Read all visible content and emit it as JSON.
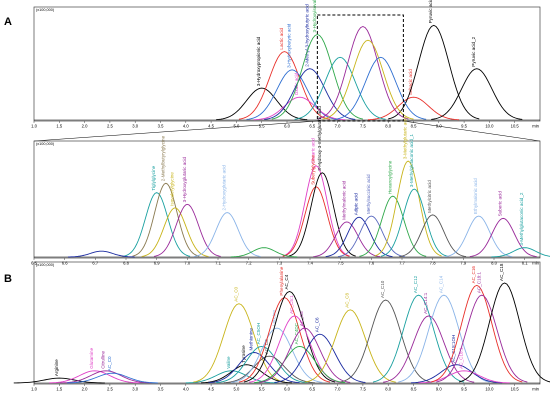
{
  "chart_data": [
    {
      "type": "line",
      "panel_label": "A",
      "ymax_label": "(x100,000)",
      "x_unit": "min",
      "xlim": [
        1.0,
        11.0
      ],
      "xticks": [
        1.0,
        1.5,
        2.0,
        2.5,
        3.0,
        3.5,
        4.0,
        4.5,
        5.0,
        5.5,
        6.0,
        6.5,
        7.0,
        7.5,
        8.0,
        8.5,
        9.0,
        9.5,
        10.0,
        10.5
      ],
      "zoom_box_x": [
        6.6,
        8.3
      ],
      "zoom_box_y": [
        0.0,
        1.0
      ],
      "peaks": [
        {
          "name": "3-Hydroxypropionic acid",
          "rt": 5.5,
          "h": 0.28,
          "color": "#000000",
          "labelled": true
        },
        {
          "name": "Lactic acid",
          "rt": 5.95,
          "h": 0.6,
          "color": "#e8302a",
          "labelled": true
        },
        {
          "name": "3-Hydroxybutyric acid",
          "rt": 6.1,
          "h": 0.44,
          "color": "#2f6fd1",
          "labelled": true
        },
        {
          "name": "Oxalic acid",
          "rt": 6.25,
          "h": 0.2,
          "color": "#e040c8",
          "labelled": true
        },
        {
          "name": "2-Methyl-3-hydroxybutyric acid",
          "rt": 6.45,
          "h": 0.45,
          "color": "#1a2aa0",
          "labelled": true
        },
        {
          "name": "3-Hydroxyisovaleric acid",
          "rt": 6.6,
          "h": 0.75,
          "color": "#2fa84a",
          "labelled": true
        },
        {
          "name": "Sebacic acid",
          "rt": 8.5,
          "h": 0.2,
          "color": "#e8302a",
          "labelled": true
        },
        {
          "name": "Pyruvic acid_1",
          "rt": 8.9,
          "h": 0.83,
          "color": "#000000",
          "labelled": true
        },
        {
          "name": "Pyruvic acid_2",
          "rt": 9.75,
          "h": 0.45,
          "color": "#000000",
          "labelled": true
        },
        {
          "name": "",
          "rt": 7.05,
          "h": 0.55,
          "color": "#1aa0a0",
          "labelled": false
        },
        {
          "name": "",
          "rt": 7.5,
          "h": 0.82,
          "color": "#9a2a9a",
          "labelled": false
        },
        {
          "name": "",
          "rt": 7.6,
          "h": 0.7,
          "color": "#c8b41a",
          "labelled": false
        },
        {
          "name": "",
          "rt": 7.85,
          "h": 0.55,
          "color": "#2f6fd1",
          "labelled": false
        }
      ]
    },
    {
      "type": "line",
      "panel_label": "",
      "ymax_label": "(x100,000)",
      "x_unit": "min",
      "xlim": [
        6.5,
        8.15
      ],
      "xticks": [
        6.5,
        6.6,
        6.7,
        6.8,
        6.9,
        7.0,
        7.1,
        7.2,
        7.3,
        7.4,
        7.5,
        7.6,
        7.7,
        7.8,
        7.9,
        8.0,
        8.1
      ],
      "peaks": [
        {
          "name": "Tiglylglycine",
          "rt": 6.9,
          "h": 0.55,
          "color": "#1aa0a0"
        },
        {
          "name": "2-Methylbutyrylglycine",
          "rt": 6.93,
          "h": 0.63,
          "color": "#8a7a50"
        },
        {
          "name": "Isovalerylglycine",
          "rt": 6.96,
          "h": 0.42,
          "color": "#c8b41a"
        },
        {
          "name": "3-Hydroxyglutaric acid",
          "rt": 7.0,
          "h": 0.45,
          "color": "#9a2a9a"
        },
        {
          "name": "2-Hydroxyglutaric acid",
          "rt": 7.13,
          "h": 0.38,
          "color": "#8ab4e8"
        },
        {
          "name": "Glutaric acid",
          "rt": 7.42,
          "h": 0.78,
          "color": "#e040c8"
        },
        {
          "name": "Suberylglycine",
          "rt": 7.42,
          "h": 0.6,
          "color": "#e8302a"
        },
        {
          "name": "3-Hydroxy-3-methylglutaric acid",
          "rt": 7.44,
          "h": 0.72,
          "color": "#000000"
        },
        {
          "name": "Methylmalonic acid",
          "rt": 7.52,
          "h": 0.3,
          "color": "#9a2a9a"
        },
        {
          "name": "Adipic acid",
          "rt": 7.56,
          "h": 0.34,
          "color": "#1a2aa0"
        },
        {
          "name": "Methylsuccinic acid",
          "rt": 7.6,
          "h": 0.35,
          "color": "#5a6abf"
        },
        {
          "name": "Hexanoylglycine",
          "rt": 7.67,
          "h": 0.52,
          "color": "#2fa84a"
        },
        {
          "name": "3-Methylglutaric acid",
          "rt": 7.72,
          "h": 0.82,
          "color": "#c8b41a"
        },
        {
          "name": "3-Methylglutaconic acid_1",
          "rt": 7.74,
          "h": 0.58,
          "color": "#1aa0a0"
        },
        {
          "name": "Methylcitric acid",
          "rt": 7.8,
          "h": 0.36,
          "color": "#555555"
        },
        {
          "name": "Ethylmalonic acid",
          "rt": 7.95,
          "h": 0.35,
          "color": "#8ab4e8"
        },
        {
          "name": "Suberic acid",
          "rt": 8.03,
          "h": 0.33,
          "color": "#9a2a9a"
        },
        {
          "name": "3-Methylglutaconic acid_2",
          "rt": 8.1,
          "h": 0.08,
          "color": "#1aa0a0"
        },
        {
          "name": "",
          "rt": 6.72,
          "h": 0.05,
          "color": "#1a2aa0"
        },
        {
          "name": "",
          "rt": 7.25,
          "h": 0.08,
          "color": "#2fa84a"
        }
      ]
    },
    {
      "type": "line",
      "panel_label": "B",
      "ymax_label": "(x100,000)",
      "x_unit": "min",
      "xlim": [
        1.0,
        11.0
      ],
      "xticks": [
        1.0,
        1.5,
        2.0,
        2.5,
        3.0,
        3.5,
        4.0,
        4.5,
        5.0,
        5.5,
        6.0,
        6.5,
        7.0,
        7.5,
        8.0,
        8.5,
        9.0,
        9.5,
        10.0,
        10.5
      ],
      "peaks": [
        {
          "name": "Arginine",
          "rt": 1.5,
          "h": 0.04,
          "color": "#000000"
        },
        {
          "name": "Glutamine",
          "rt": 2.2,
          "h": 0.1,
          "color": "#e040c8"
        },
        {
          "name": "Citrulline",
          "rt": 2.42,
          "h": 0.1,
          "color": "#9a2a9a"
        },
        {
          "name": "AC_C0",
          "rt": 2.55,
          "h": 0.08,
          "color": "#2f6fd1"
        },
        {
          "name": "Valine",
          "rt": 4.9,
          "h": 0.1,
          "color": "#1aa0a0"
        },
        {
          "name": "AC_C0",
          "rt": 5.05,
          "h": 0.65,
          "color": "#c8b41a"
        },
        {
          "name": "Tyrosine",
          "rt": 5.2,
          "h": 0.15,
          "color": "#000000"
        },
        {
          "name": "Methionine",
          "rt": 5.35,
          "h": 0.25,
          "color": "#1a2aa0"
        },
        {
          "name": "AC_C5OH",
          "rt": 5.5,
          "h": 0.3,
          "color": "#1aa0a0"
        },
        {
          "name": "AC_C3",
          "rt": 5.65,
          "h": 0.22,
          "color": "#555555"
        },
        {
          "name": "Leucine",
          "rt": 5.8,
          "h": 0.45,
          "color": "#8ab4e8"
        },
        {
          "name": "Phenylalanine",
          "rt": 5.95,
          "h": 0.7,
          "color": "#e8302a"
        },
        {
          "name": "AC_C4",
          "rt": 6.05,
          "h": 0.75,
          "color": "#000000"
        },
        {
          "name": "AC_C5:1",
          "rt": 6.15,
          "h": 0.55,
          "color": "#e040c8"
        },
        {
          "name": "AC_C4DC",
          "rt": 6.25,
          "h": 0.3,
          "color": "#2fa84a"
        },
        {
          "name": "AC_C5",
          "rt": 6.35,
          "h": 0.45,
          "color": "#9a2a9a"
        },
        {
          "name": "AC_C6",
          "rt": 6.65,
          "h": 0.4,
          "color": "#1a2aa0"
        },
        {
          "name": "AC_C8",
          "rt": 7.25,
          "h": 0.6,
          "color": "#c8b41a"
        },
        {
          "name": "AC_C10",
          "rt": 7.95,
          "h": 0.68,
          "color": "#555555"
        },
        {
          "name": "AC_C12",
          "rt": 8.6,
          "h": 0.72,
          "color": "#1aa0a0"
        },
        {
          "name": "AC_C14:1",
          "rt": 8.8,
          "h": 0.55,
          "color": "#9a2a9a"
        },
        {
          "name": "AC_C14",
          "rt": 9.1,
          "h": 0.72,
          "color": "#8ab4e8"
        },
        {
          "name": "AC_C18:1OH",
          "rt": 9.35,
          "h": 0.15,
          "color": "#1a2aa0"
        },
        {
          "name": "AC_C18:1",
          "rt": 9.5,
          "h": 0.1,
          "color": "#e040c8"
        },
        {
          "name": "AC_C16",
          "rt": 9.75,
          "h": 0.8,
          "color": "#e8302a"
        },
        {
          "name": "AC_C18:1",
          "rt": 9.85,
          "h": 0.72,
          "color": "#9a2a9a"
        },
        {
          "name": "AC_C18",
          "rt": 10.3,
          "h": 0.82,
          "color": "#000000"
        }
      ]
    }
  ]
}
